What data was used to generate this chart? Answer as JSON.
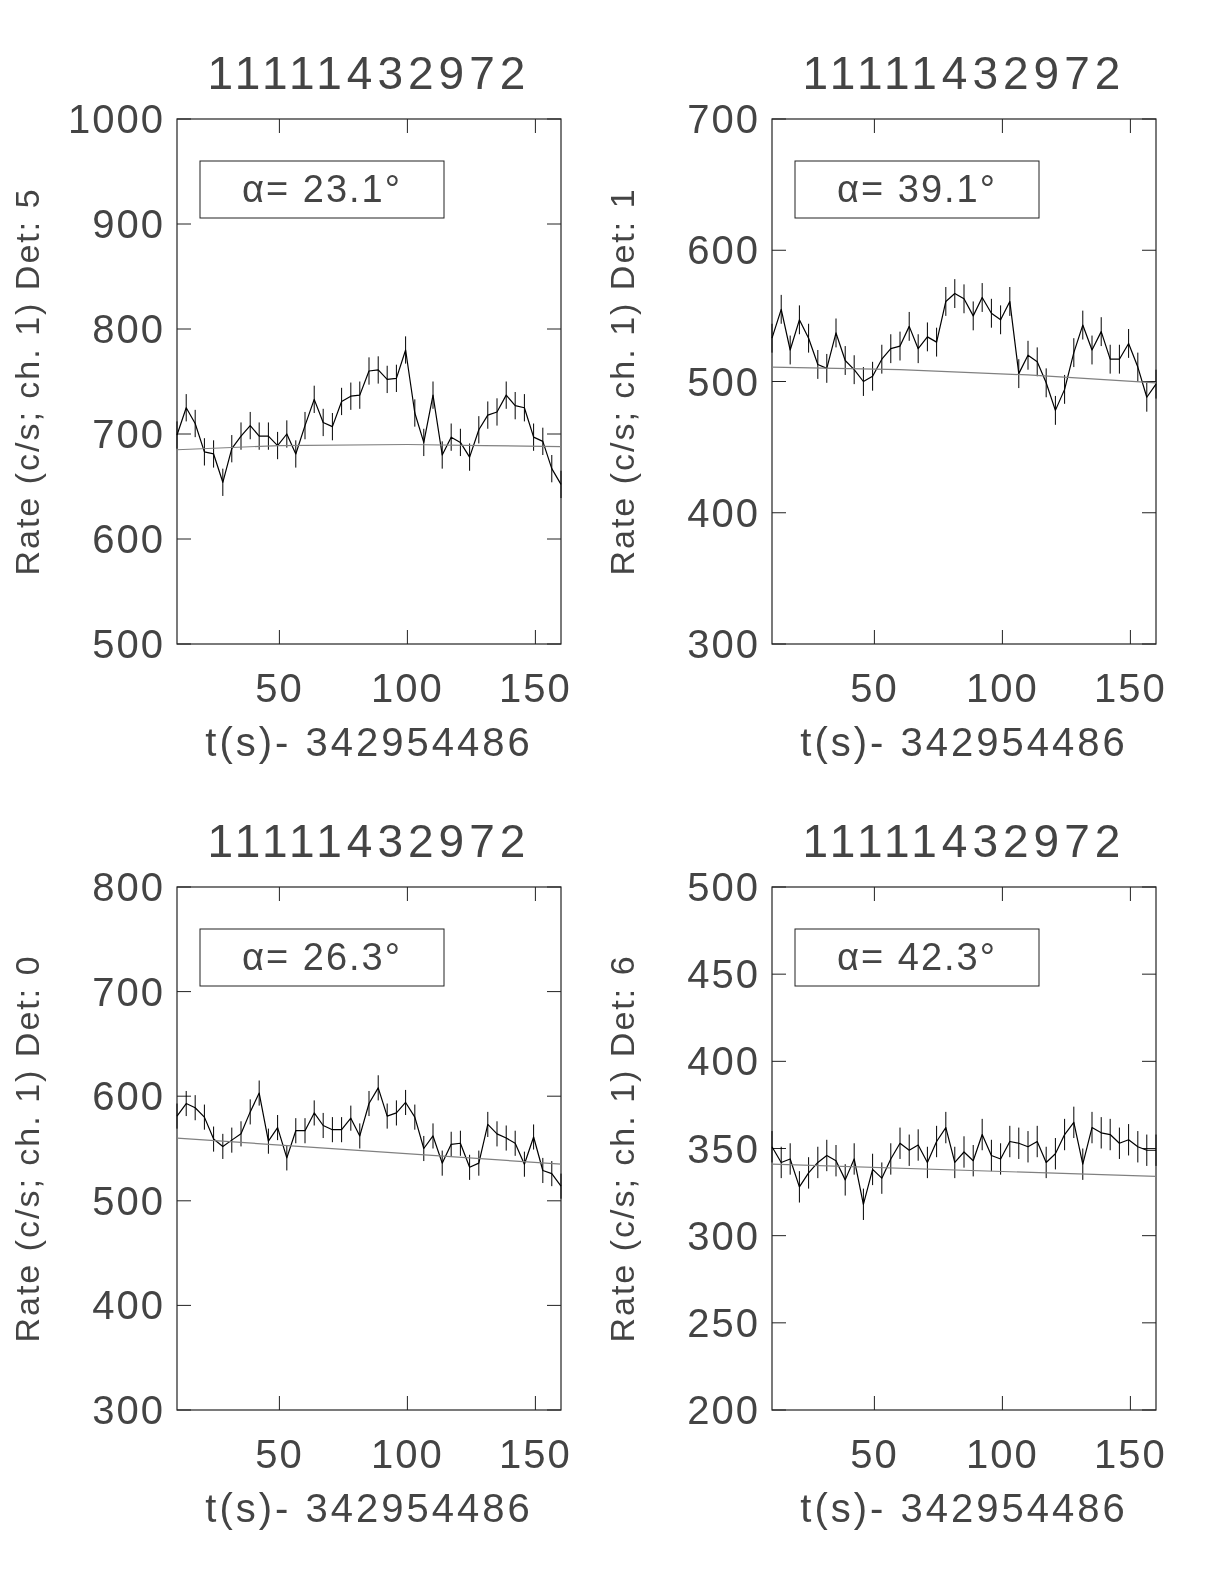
{
  "chart_data": [
    {
      "type": "line",
      "title": "11111432972",
      "xlabel": "t(s)- 342954486",
      "ylabel": "Rate (c/s; ch. 1) Det: 5",
      "annotations": [
        "α= 23.1°"
      ],
      "xlim": [
        10,
        160
      ],
      "xticks": [
        50,
        100,
        150
      ],
      "ylim": [
        500,
        1000
      ],
      "yticks": [
        500,
        600,
        700,
        800,
        900,
        1000
      ],
      "x": [
        10,
        13.6,
        17.1,
        20.7,
        24.3,
        27.9,
        31.4,
        35,
        38.6,
        42.1,
        45.7,
        49.3,
        52.9,
        56.4,
        60,
        63.6,
        67.1,
        70.7,
        74.3,
        77.9,
        81.4,
        85,
        88.6,
        92.1,
        95.7,
        99.3,
        102.9,
        106.4,
        110,
        113.6,
        117.1,
        120.7,
        124.3,
        127.9,
        131.4,
        135,
        138.6,
        142.1,
        145.7,
        149.3,
        152.9,
        156.4,
        160
      ],
      "series": [
        {
          "color": "#000000",
          "values": [
            699,
            725,
            710,
            683,
            681,
            654,
            686,
            698,
            708,
            698,
            698,
            689,
            700,
            681,
            708,
            733,
            711,
            707,
            731,
            736,
            737,
            760,
            761,
            752,
            753,
            780,
            720,
            692,
            737,
            680,
            697,
            692,
            678,
            704,
            718,
            721,
            737,
            727,
            725,
            697,
            693,
            667,
            652
          ],
          "errors": [
            13,
            13,
            13,
            13,
            13,
            13,
            13,
            13,
            13,
            13,
            13,
            13,
            13,
            13,
            13,
            13,
            13,
            13,
            13,
            13,
            13,
            13,
            13,
            13,
            13,
            13,
            13,
            13,
            13,
            13,
            13,
            13,
            13,
            13,
            13,
            13,
            13,
            13,
            13,
            13,
            13,
            13,
            13
          ]
        },
        {
          "type": "line",
          "color": "#808080",
          "x": [
            10,
            50,
            100,
            130,
            160
          ],
          "values": [
            685,
            689,
            690,
            689,
            688
          ]
        }
      ]
    },
    {
      "type": "line",
      "title": "11111432972",
      "xlabel": "t(s)- 342954486",
      "ylabel": "Rate (c/s; ch. 1) Det: 1",
      "annotations": [
        "α= 39.1°"
      ],
      "xlim": [
        10,
        160
      ],
      "xticks": [
        50,
        100,
        150
      ],
      "ylim": [
        300,
        700
      ],
      "yticks": [
        300,
        400,
        500,
        600,
        700
      ],
      "x": [
        10,
        13.6,
        17.1,
        20.7,
        24.3,
        27.9,
        31.4,
        35,
        38.6,
        42.1,
        45.7,
        49.3,
        52.9,
        56.4,
        60,
        63.6,
        67.1,
        70.7,
        74.3,
        77.9,
        81.4,
        85,
        88.6,
        92.1,
        95.7,
        99.3,
        102.9,
        106.4,
        110,
        113.6,
        117.1,
        120.7,
        124.3,
        127.9,
        131.4,
        135,
        138.6,
        142.1,
        145.7,
        149.3,
        152.9,
        156.4,
        160
      ],
      "series": [
        {
          "color": "#000000",
          "values": [
            533,
            555,
            524,
            547,
            533,
            513,
            510,
            537,
            516,
            509,
            500,
            504,
            517,
            525,
            527,
            542,
            525,
            534,
            530,
            561,
            567,
            563,
            550,
            564,
            552,
            547,
            561,
            506,
            520,
            515,
            499,
            478,
            494,
            522,
            543,
            524,
            538,
            517,
            517,
            529,
            511,
            488,
            498
          ],
          "errors": [
            11,
            11,
            11,
            11,
            11,
            11,
            11,
            11,
            11,
            11,
            11,
            11,
            11,
            11,
            11,
            11,
            11,
            11,
            11,
            11,
            11,
            11,
            11,
            11,
            11,
            11,
            11,
            11,
            11,
            11,
            11,
            11,
            11,
            11,
            11,
            11,
            11,
            11,
            11,
            11,
            11,
            11,
            11
          ]
        },
        {
          "type": "line",
          "color": "#808080",
          "x": [
            10,
            60,
            110,
            160
          ],
          "values": [
            511,
            509,
            505,
            499
          ]
        }
      ]
    },
    {
      "type": "line",
      "title": "11111432972",
      "xlabel": "t(s)- 342954486",
      "ylabel": "Rate (c/s; ch. 1) Det: 0",
      "annotations": [
        "α= 26.3°"
      ],
      "xlim": [
        10,
        160
      ],
      "xticks": [
        50,
        100,
        150
      ],
      "ylim": [
        300,
        800
      ],
      "yticks": [
        300,
        400,
        500,
        600,
        700,
        800
      ],
      "x": [
        10,
        13.6,
        17.1,
        20.7,
        24.3,
        27.9,
        31.4,
        35,
        38.6,
        42.1,
        45.7,
        49.3,
        52.9,
        56.4,
        60,
        63.6,
        67.1,
        70.7,
        74.3,
        77.9,
        81.4,
        85,
        88.6,
        92.1,
        95.7,
        99.3,
        102.9,
        106.4,
        110,
        113.6,
        117.1,
        120.7,
        124.3,
        127.9,
        131.4,
        135,
        138.6,
        142.1,
        145.7,
        149.3,
        152.9,
        156.4,
        160
      ],
      "series": [
        {
          "color": "#000000",
          "values": [
            581,
            593,
            589,
            580,
            559,
            552,
            558,
            564,
            585,
            603,
            557,
            570,
            541,
            567,
            567,
            584,
            572,
            568,
            568,
            579,
            562,
            593,
            608,
            581,
            584,
            594,
            580,
            550,
            562,
            536,
            554,
            555,
            532,
            536,
            573,
            564,
            560,
            555,
            535,
            561,
            529,
            526,
            514
          ],
          "errors": [
            12,
            12,
            12,
            12,
            12,
            12,
            12,
            12,
            12,
            12,
            12,
            12,
            12,
            12,
            12,
            12,
            12,
            12,
            12,
            12,
            12,
            12,
            12,
            12,
            12,
            12,
            12,
            12,
            12,
            12,
            12,
            12,
            12,
            12,
            12,
            12,
            12,
            12,
            12,
            12,
            12,
            12,
            12
          ]
        },
        {
          "type": "line",
          "color": "#808080",
          "x": [
            10,
            160
          ],
          "values": [
            560,
            535
          ]
        }
      ]
    },
    {
      "type": "line",
      "title": "11111432972",
      "xlabel": "t(s)- 342954486",
      "ylabel": "Rate (c/s; ch. 1) Det: 6",
      "annotations": [
        "α= 42.3°"
      ],
      "xlim": [
        10,
        160
      ],
      "xticks": [
        50,
        100,
        150
      ],
      "ylim": [
        200,
        500
      ],
      "yticks": [
        200,
        250,
        300,
        350,
        400,
        450,
        500
      ],
      "x": [
        10,
        13.6,
        17.1,
        20.7,
        24.3,
        27.9,
        31.4,
        35,
        38.6,
        42.1,
        45.7,
        49.3,
        52.9,
        56.4,
        60,
        63.6,
        67.1,
        70.7,
        74.3,
        77.9,
        81.4,
        85,
        88.6,
        92.1,
        95.7,
        99.3,
        102.9,
        106.4,
        110,
        113.6,
        117.1,
        120.7,
        124.3,
        127.9,
        131.4,
        135,
        138.6,
        142.1,
        145.7,
        149.3,
        152.9,
        156.4,
        160
      ],
      "series": [
        {
          "color": "#000000",
          "values": [
            351,
            342,
            344,
            328,
            336,
            342,
            346,
            343,
            332,
            344,
            318,
            338,
            333,
            344,
            353,
            349,
            352,
            342,
            354,
            362,
            342,
            348,
            343,
            358,
            346,
            344,
            354,
            353,
            351,
            354,
            342,
            347,
            358,
            365,
            341,
            362,
            359,
            358,
            353,
            355,
            351,
            349,
            349
          ],
          "errors": [
            9,
            9,
            9,
            9,
            9,
            9,
            9,
            9,
            9,
            9,
            9,
            9,
            9,
            9,
            9,
            9,
            9,
            9,
            9,
            9,
            9,
            9,
            9,
            9,
            9,
            9,
            9,
            9,
            9,
            9,
            9,
            9,
            9,
            9,
            9,
            9,
            9,
            9,
            9,
            9,
            9,
            9,
            9
          ]
        },
        {
          "type": "line",
          "color": "#808080",
          "x": [
            10,
            160
          ],
          "values": [
            341,
            334
          ]
        }
      ]
    }
  ]
}
